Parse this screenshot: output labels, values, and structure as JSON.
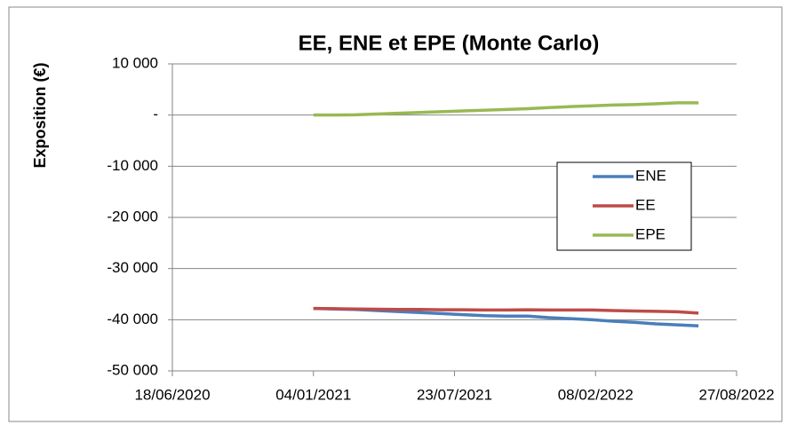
{
  "chart_data": {
    "type": "line",
    "title": "EE, ENE et EPE (Monte Carlo)",
    "y_label": "Exposition (€)",
    "x": [
      "04/01/2021",
      "04/02/2021",
      "04/03/2021",
      "04/04/2021",
      "04/05/2021",
      "04/06/2021",
      "04/07/2021",
      "04/08/2021",
      "04/09/2021",
      "04/10/2021",
      "04/11/2021",
      "04/12/2021",
      "04/01/2022",
      "04/02/2022",
      "04/03/2022",
      "04/04/2022",
      "04/05/2022",
      "04/06/2022",
      "04/07/2022"
    ],
    "series": [
      {
        "name": "ENE",
        "color": "#4a7ebb",
        "values": [
          -37800,
          -37900,
          -38000,
          -38200,
          -38400,
          -38600,
          -38800,
          -39000,
          -39200,
          -39300,
          -39300,
          -39600,
          -39800,
          -40000,
          -40300,
          -40500,
          -40800,
          -41000,
          -41200
        ]
      },
      {
        "name": "EE",
        "color": "#be4b48",
        "values": [
          -37800,
          -37850,
          -37900,
          -37950,
          -38000,
          -38000,
          -38050,
          -38050,
          -38100,
          -38100,
          -38050,
          -38100,
          -38100,
          -38100,
          -38200,
          -38300,
          -38350,
          -38450,
          -38700
        ]
      },
      {
        "name": "EPE",
        "color": "#98b954",
        "values": [
          0,
          0,
          50,
          200,
          350,
          500,
          650,
          800,
          950,
          1100,
          1250,
          1450,
          1650,
          1800,
          1950,
          2050,
          2200,
          2400,
          2400
        ]
      }
    ],
    "xlim": [
      "18/06/2020",
      "27/08/2022"
    ],
    "xticks": [
      "18/06/2020",
      "04/01/2021",
      "23/07/2021",
      "08/02/2022",
      "27/08/2022"
    ],
    "ylim": [
      -50000,
      10000
    ],
    "yticks": [
      {
        "value": -50000,
        "label": "-50 000"
      },
      {
        "value": -40000,
        "label": "-40 000"
      },
      {
        "value": -30000,
        "label": "-30 000"
      },
      {
        "value": -20000,
        "label": "-20 000"
      },
      {
        "value": -10000,
        "label": "-10 000"
      },
      {
        "value": 0,
        "label": "-"
      },
      {
        "value": 10000,
        "label": "10 000"
      }
    ],
    "grid": true,
    "legend": "right"
  }
}
